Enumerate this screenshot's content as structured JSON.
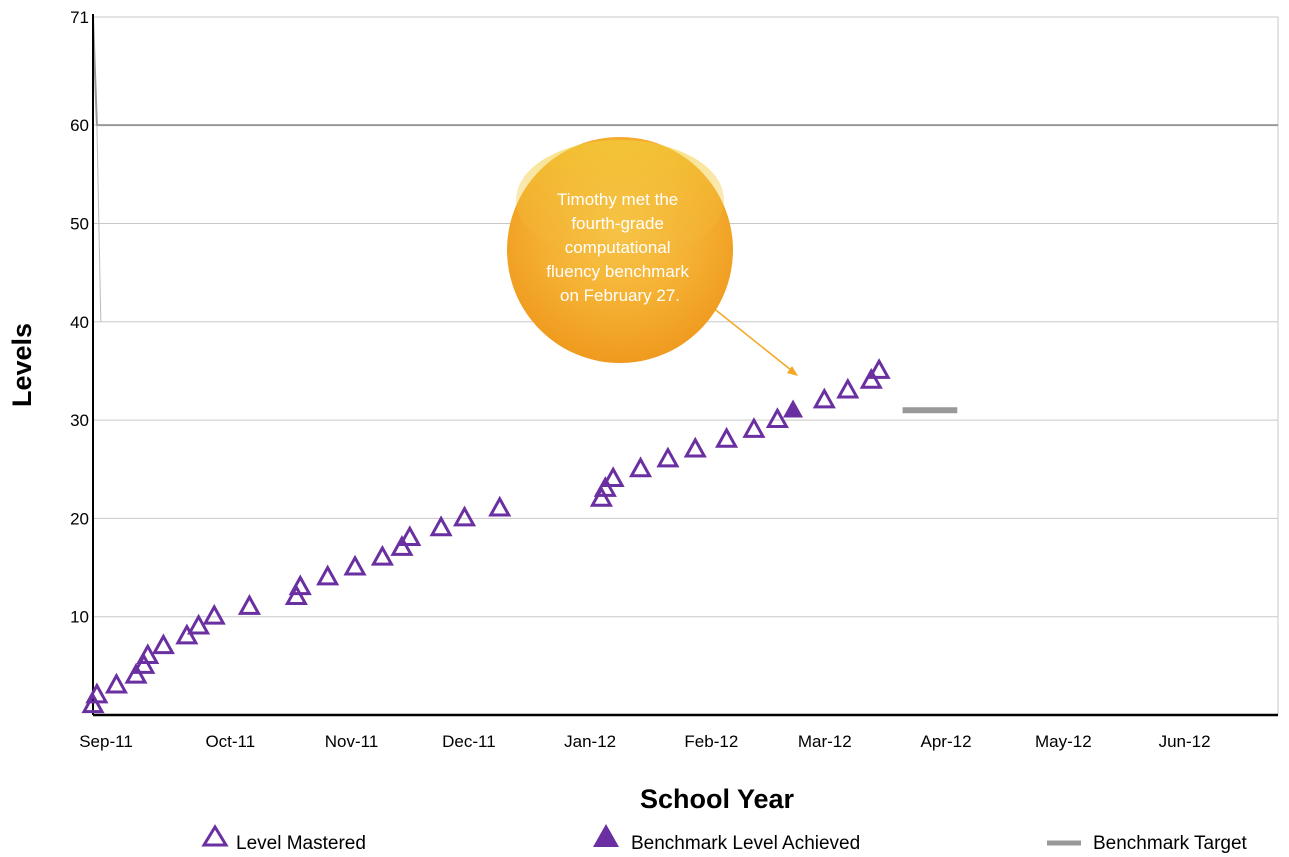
{
  "chart_data": {
    "type": "scatter",
    "xlabel": "School Year",
    "ylabel": "Levels",
    "x_ticks": [
      "Sep-11",
      "Oct-11",
      "Nov-11",
      "Dec-11",
      "Jan-12",
      "Feb-12",
      "Mar-12",
      "Apr-12",
      "May-12",
      "Jun-12"
    ],
    "y_ticks": [
      10,
      20,
      30,
      40,
      50,
      60,
      71
    ],
    "ylim": [
      0,
      71
    ],
    "grid": true,
    "series": [
      {
        "name": "Level Mastered",
        "marker": "hollow-triangle",
        "color": "#6a2fa0",
        "points": [
          [
            "2011-09-01",
            1
          ],
          [
            "2011-09-02",
            2
          ],
          [
            "2011-09-07",
            3
          ],
          [
            "2011-09-12",
            4
          ],
          [
            "2011-09-14",
            5
          ],
          [
            "2011-09-15",
            6
          ],
          [
            "2011-09-19",
            7
          ],
          [
            "2011-09-25",
            8
          ],
          [
            "2011-09-28",
            9
          ],
          [
            "2011-10-02",
            10
          ],
          [
            "2011-10-11",
            11
          ],
          [
            "2011-10-23",
            12
          ],
          [
            "2011-10-24",
            13
          ],
          [
            "2011-10-31",
            14
          ],
          [
            "2011-11-07",
            15
          ],
          [
            "2011-11-14",
            16
          ],
          [
            "2011-11-19",
            17
          ],
          [
            "2011-11-21",
            18
          ],
          [
            "2011-11-29",
            19
          ],
          [
            "2011-12-05",
            20
          ],
          [
            "2011-12-14",
            21
          ],
          [
            "2012-01-09",
            22
          ],
          [
            "2012-01-10",
            23
          ],
          [
            "2012-01-12",
            24
          ],
          [
            "2012-01-19",
            25
          ],
          [
            "2012-01-26",
            26
          ],
          [
            "2012-02-02",
            27
          ],
          [
            "2012-02-10",
            28
          ],
          [
            "2012-02-17",
            29
          ],
          [
            "2012-02-23",
            30
          ],
          [
            "2012-03-06",
            32
          ],
          [
            "2012-03-12",
            33
          ],
          [
            "2012-03-18",
            34
          ],
          [
            "2012-03-20",
            35
          ]
        ]
      },
      {
        "name": "Benchmark Level Achieved",
        "marker": "filled-triangle",
        "color": "#6a2fa0",
        "points": [
          [
            "2012-02-27",
            31
          ]
        ]
      },
      {
        "name": "Benchmark Target",
        "marker": "line",
        "color": "#999999",
        "segment": [
          [
            "2012-03-26",
            31
          ],
          [
            "2012-04-09",
            31
          ]
        ]
      }
    ],
    "reference_line": {
      "color": "#999999",
      "points": [
        [
          "2011-09-01",
          71
        ],
        [
          "2011-09-02",
          60
        ],
        [
          "2012-06-30",
          60
        ]
      ]
    },
    "annotation": {
      "text": [
        "Timothy met the",
        "fourth-grade",
        "computational",
        "fluency benchmark",
        "on February 27."
      ],
      "color": "#f5a623"
    }
  },
  "legend": {
    "level_mastered": "Level Mastered",
    "benchmark_achieved": "Benchmark Level Achieved",
    "benchmark_target": "Benchmark Target"
  }
}
